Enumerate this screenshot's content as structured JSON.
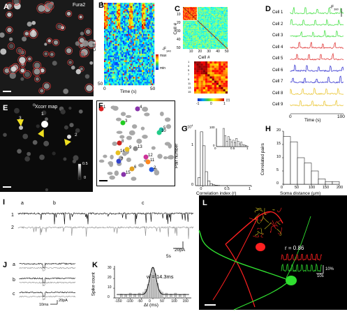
{
  "panels": {
    "A": {
      "letter": "A",
      "label": "Fura2"
    },
    "B": {
      "letter": "B",
      "ylabel": "Cell #",
      "xlabel": "Time (s)",
      "y_top": "1",
      "y_bottom": "50",
      "x_start": "0",
      "x_end": "50",
      "cbar_title": "-F",
      "cbar_sub": "340",
      "cbar_max": "max",
      "cbar_min": "min"
    },
    "C": {
      "letter": "C",
      "xlabel": "Cell #",
      "ylabel": "Cell #",
      "x_ticks": [
        "10",
        "20",
        "30",
        "40",
        "50"
      ],
      "y_ticks": [
        "10",
        "20",
        "30",
        "40",
        "50"
      ],
      "zoom_y_ticks": [
        "1",
        "3",
        "5",
        "7",
        "9",
        "11",
        "13",
        "15"
      ],
      "zoom_x_ticks": [
        "1",
        "3",
        "5",
        "7",
        "9",
        "11",
        "13",
        "15"
      ],
      "cbar_neg": "-1",
      "cbar_zero": "0",
      "cbar_pos": "1",
      "cbar_unit": "(r)"
    },
    "D": {
      "letter": "D",
      "traces": [
        "Cell 1",
        "Cell 2",
        "Cell 3",
        "Cell 4",
        "Cell 5",
        "Cell 6",
        "Cell 7",
        "Cell 8",
        "Cell 9"
      ],
      "xlabel": "Time (s)",
      "x_start": "0",
      "x_end": "100",
      "scale_title": "-F",
      "scale_sub": "380"
    },
    "E": {
      "letter": "E",
      "label": "Xcorr map",
      "markers": [
        "1",
        "2",
        "3"
      ],
      "cbar_max": "0.5",
      "cbar_min": "0"
    },
    "F": {
      "letter": "F",
      "cells": [
        "1",
        "2",
        "3",
        "4",
        "5",
        "6",
        "7",
        "8",
        "9",
        "10",
        "11",
        "12",
        "13",
        "14",
        "15"
      ]
    },
    "G": {
      "letter": "G",
      "ylabel": "Pair number",
      "xlabel": "Correlation index (r)",
      "y_exp": "x10",
      "y_exp_pow": "4",
      "y_ticks": [
        "0",
        "1"
      ],
      "x_ticks": [
        "0",
        "0.5",
        "1"
      ],
      "inset_y_max": "100",
      "inset_y_zero": "0",
      "inset_x": [
        "0",
        "0.5",
        "1"
      ]
    },
    "H": {
      "letter": "H",
      "ylabel": "Correlated pairs",
      "xlabel": "Soma distance (μm)",
      "y_ticks": [
        "0",
        "5",
        "10",
        "15",
        "20"
      ],
      "x_ticks": [
        "0",
        "50",
        "100",
        "150",
        "200"
      ]
    },
    "I": {
      "letter": "I",
      "segments": [
        "a",
        "b",
        "c"
      ],
      "traces": [
        "1",
        "2"
      ],
      "scale_y": "20pA",
      "scale_x": "5s"
    },
    "J": {
      "letter": "J",
      "rows": [
        "a",
        "b",
        "c"
      ],
      "scale_y": "20pA",
      "scale_x": "10ms"
    },
    "K": {
      "letter": "K",
      "ylabel": "Spike count",
      "xlabel": "Δt (ms)",
      "width_label": "w = 14.3ms",
      "y_ticks": [
        "0",
        "10",
        "20",
        "30"
      ],
      "x_ticks": [
        "-150",
        "-100",
        "-50",
        "0",
        "50",
        "100",
        "150"
      ]
    },
    "L": {
      "letter": "L",
      "r_label": "r = 0.86",
      "scale_y": "10%",
      "scale_x": "10s"
    }
  },
  "chart_data": [
    {
      "type": "bar",
      "panel": "G",
      "x": [
        -0.1,
        -0.05,
        0.0,
        0.05,
        0.1,
        0.15,
        0.2,
        0.25,
        0.3
      ],
      "values": [
        0.2,
        1.35,
        1.0,
        0.35,
        0.12,
        0.05,
        0.02,
        0.01,
        0.005
      ],
      "xlabel": "Correlation index (r)",
      "ylabel": "Pair number",
      "xlim": [
        -0.15,
        1
      ],
      "ylim": [
        0,
        1.4
      ]
    },
    {
      "type": "bar",
      "panel": "G-inset",
      "x": [
        0.2,
        0.25,
        0.3,
        0.35,
        0.4,
        0.45,
        0.5,
        0.55,
        0.6,
        0.65,
        0.7,
        0.75,
        0.8,
        0.85,
        0.9
      ],
      "values": [
        100,
        60,
        30,
        55,
        40,
        25,
        35,
        20,
        45,
        30,
        15,
        25,
        10,
        8,
        5
      ],
      "xlim": [
        0,
        1
      ],
      "ylim": [
        0,
        100
      ]
    },
    {
      "type": "bar",
      "panel": "H",
      "x": [
        12.5,
        37.5,
        62.5,
        87.5,
        112.5,
        137.5,
        162.5,
        187.5
      ],
      "values": [
        18,
        16,
        10,
        8,
        5,
        2,
        1,
        1
      ],
      "xlabel": "Soma distance (μm)",
      "ylabel": "Correlated pairs",
      "xlim": [
        0,
        200
      ],
      "ylim": [
        0,
        20
      ]
    },
    {
      "type": "bar",
      "panel": "K",
      "x": [
        -140,
        -120,
        -100,
        -80,
        -60,
        -40,
        -30,
        -20,
        -10,
        0,
        10,
        20,
        30,
        40,
        60,
        80,
        100,
        120,
        140
      ],
      "values": [
        4,
        3,
        5,
        4,
        5,
        6,
        9,
        14,
        24,
        31,
        25,
        15,
        8,
        6,
        5,
        4,
        5,
        3,
        4
      ],
      "xlabel": "Δt (ms)",
      "ylabel": "Spike count",
      "xlim": [
        -170,
        170
      ],
      "ylim": [
        0,
        33
      ]
    }
  ]
}
